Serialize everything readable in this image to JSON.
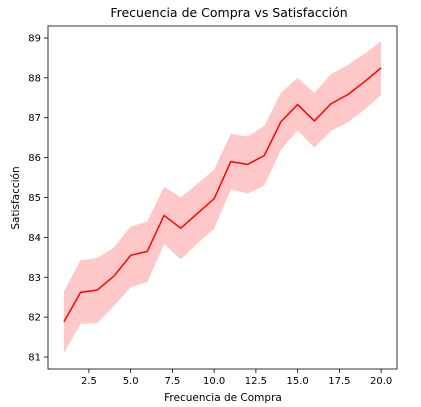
{
  "chart_data": {
    "type": "line",
    "title": "Frecuencia de Compra vs Satisfacción",
    "xlabel": "Frecuencia de Compra",
    "ylabel": "Satisfacción",
    "xlim": [
      0.05,
      20.95
    ],
    "ylim": [
      80.7,
      89.3
    ],
    "x_ticks": [
      2.5,
      5.0,
      7.5,
      10.0,
      12.5,
      15.0,
      17.5,
      20.0
    ],
    "x_tick_labels": [
      "2.5",
      "5.0",
      "7.5",
      "10.0",
      "12.5",
      "15.0",
      "17.5",
      "20.0"
    ],
    "y_ticks": [
      81,
      82,
      83,
      84,
      85,
      86,
      87,
      88,
      89
    ],
    "y_tick_labels": [
      "81",
      "82",
      "83",
      "84",
      "85",
      "86",
      "87",
      "88",
      "89"
    ],
    "grid": false,
    "series": [
      {
        "color": "#ff0000",
        "band_color": "#ffc8c8",
        "x": [
          1,
          2,
          3,
          4,
          5,
          6,
          7,
          8,
          9,
          10,
          11,
          12,
          13,
          14,
          15,
          16,
          17,
          18,
          19,
          20
        ],
        "values": [
          81.88,
          82.62,
          82.68,
          83.03,
          83.55,
          83.65,
          84.55,
          84.23,
          84.6,
          84.97,
          85.9,
          85.83,
          86.05,
          86.9,
          87.33,
          86.92,
          87.35,
          87.58,
          87.9,
          88.25
        ],
        "upper": [
          82.65,
          83.43,
          83.48,
          83.75,
          84.27,
          84.4,
          85.27,
          85.0,
          85.35,
          85.7,
          86.6,
          86.53,
          86.8,
          87.63,
          88.0,
          87.62,
          88.1,
          88.32,
          88.6,
          88.92
        ],
        "lower": [
          81.1,
          81.83,
          81.85,
          82.28,
          82.75,
          82.88,
          83.83,
          83.45,
          83.85,
          84.22,
          85.2,
          85.1,
          85.3,
          86.2,
          86.68,
          86.25,
          86.67,
          86.88,
          87.2,
          87.57
        ]
      }
    ]
  }
}
